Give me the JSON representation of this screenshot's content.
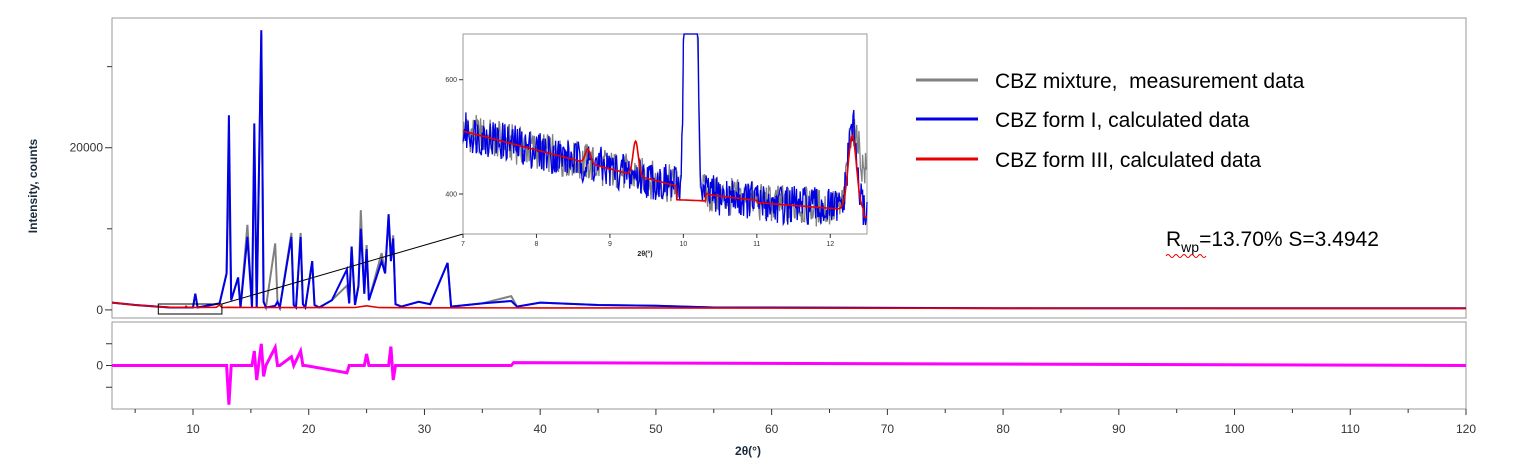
{
  "chart_data": {
    "type": "line",
    "xlabel": "2θ(°)",
    "ylabel": "Intensity, counts",
    "xlim": [
      3,
      120
    ],
    "ylim": [
      -1000,
      36000
    ],
    "xticks": [
      10,
      20,
      30,
      40,
      50,
      60,
      70,
      80,
      90,
      100,
      110,
      120
    ],
    "yticks": [
      0,
      20000
    ],
    "legend_position": "top-right",
    "series": [
      {
        "name": "CBZ mixture,  measurement data",
        "color": "#808080",
        "x": [
          3,
          5,
          8,
          10,
          10.2,
          10.4,
          12.3,
          12.9,
          13.1,
          13.3,
          13.9,
          14.1,
          14.7,
          15.1,
          15.3,
          15.5,
          15.9,
          16.1,
          16.3,
          17.1,
          17.3,
          17.5,
          18.5,
          18.7,
          18.9,
          19.3,
          19.5,
          19.7,
          20.3,
          20.5,
          20.9,
          22,
          23.3,
          23.5,
          23.7,
          24,
          24.3,
          24.5,
          24.8,
          25,
          25.2,
          26.3,
          26.6,
          26.9,
          27.1,
          27.3,
          27.5,
          28,
          29.5,
          30.5,
          32,
          32.3,
          35,
          37.5,
          38,
          40,
          45,
          50,
          55,
          60,
          70,
          80,
          90,
          100,
          110,
          120
        ],
        "y": [
          900,
          600,
          300,
          300,
          2000,
          300,
          800,
          4500,
          18000,
          1200,
          4000,
          300,
          10500,
          300,
          21000,
          300,
          34000,
          1000,
          300,
          8200,
          1000,
          300,
          9500,
          600,
          300,
          9500,
          700,
          300,
          6000,
          600,
          300,
          1200,
          3000,
          800,
          7800,
          600,
          3000,
          12300,
          2000,
          8000,
          1200,
          7000,
          4500,
          11500,
          6500,
          9200,
          700,
          400,
          1000,
          700,
          5800,
          400,
          800,
          1700,
          400,
          900,
          600,
          500,
          300,
          300,
          250,
          200,
          200,
          200,
          200,
          200
        ]
      },
      {
        "name": "CBZ form I, calculated data",
        "color": "#0000e6",
        "x": [
          3,
          5,
          8,
          10,
          10.2,
          10.4,
          12.3,
          12.9,
          13.1,
          13.3,
          13.9,
          14.1,
          14.7,
          15.1,
          15.3,
          15.5,
          15.9,
          16.1,
          16.3,
          17.1,
          17.3,
          17.5,
          18.5,
          18.7,
          18.9,
          19.3,
          19.5,
          19.7,
          20.3,
          20.5,
          20.9,
          22,
          23.3,
          23.5,
          23.7,
          24,
          24.3,
          24.5,
          24.8,
          25,
          25.2,
          26.3,
          26.6,
          26.9,
          27.1,
          27.3,
          27.5,
          28,
          29.5,
          30.5,
          32,
          32.3,
          35,
          37.5,
          38,
          40,
          45,
          50,
          55,
          60,
          70,
          80,
          90,
          100,
          110,
          120
        ],
        "y": [
          900,
          600,
          300,
          300,
          2000,
          300,
          800,
          4500,
          24000,
          1200,
          4000,
          300,
          9000,
          300,
          23000,
          300,
          34500,
          1000,
          300,
          500,
          1000,
          300,
          9000,
          600,
          300,
          9000,
          700,
          300,
          6000,
          600,
          300,
          1200,
          5000,
          800,
          7800,
          600,
          3000,
          10000,
          2000,
          7500,
          1200,
          6000,
          4500,
          11800,
          6000,
          8800,
          700,
          400,
          1000,
          700,
          5800,
          400,
          800,
          1100,
          400,
          900,
          600,
          500,
          300,
          300,
          250,
          200,
          200,
          200,
          200,
          200
        ]
      },
      {
        "name": "CBZ form III, calculated data",
        "color": "#e60000",
        "x": [
          3,
          5,
          8,
          9.3,
          9.4,
          9.5,
          10,
          12,
          12.3,
          12.5,
          13,
          15,
          20,
          24,
          25,
          26,
          30,
          40,
          60,
          80,
          100,
          120
        ],
        "y": [
          900,
          600,
          320,
          320,
          450,
          320,
          300,
          320,
          600,
          300,
          320,
          300,
          280,
          300,
          500,
          300,
          260,
          240,
          220,
          210,
          200,
          200
        ]
      }
    ],
    "difference": {
      "color": "#ff00ff",
      "ylim": [
        -6000,
        6000
      ],
      "x": [
        3,
        12.9,
        13.1,
        13.3,
        15.1,
        15.3,
        15.5,
        15.9,
        16.1,
        16.3,
        17.1,
        17.3,
        17.5,
        18.5,
        18.7,
        19.3,
        19.5,
        19.7,
        23.3,
        23.5,
        24.8,
        25,
        25.2,
        26.9,
        27.1,
        27.3,
        27.5,
        37.5,
        37.7,
        120
      ],
      "y": [
        0,
        0,
        -5400,
        0,
        0,
        2000,
        -2000,
        3000,
        -1500,
        0,
        2500,
        0,
        0,
        1200,
        0,
        2000,
        0,
        0,
        -1000,
        0,
        0,
        1600,
        0,
        0,
        2600,
        -2000,
        0,
        0,
        400,
        0
      ]
    },
    "inset": {
      "xlim": [
        7,
        12.5
      ],
      "ylim": [
        330,
        680
      ],
      "xticks": [
        7,
        8,
        9,
        10,
        11,
        12
      ],
      "yticks": [
        400,
        600
      ],
      "xlabel": "2θ(°)"
    },
    "annotation": {
      "r_prefix": "R",
      "r_subscript": "wp",
      "r_value": "=13.70% S=3.4942"
    }
  }
}
